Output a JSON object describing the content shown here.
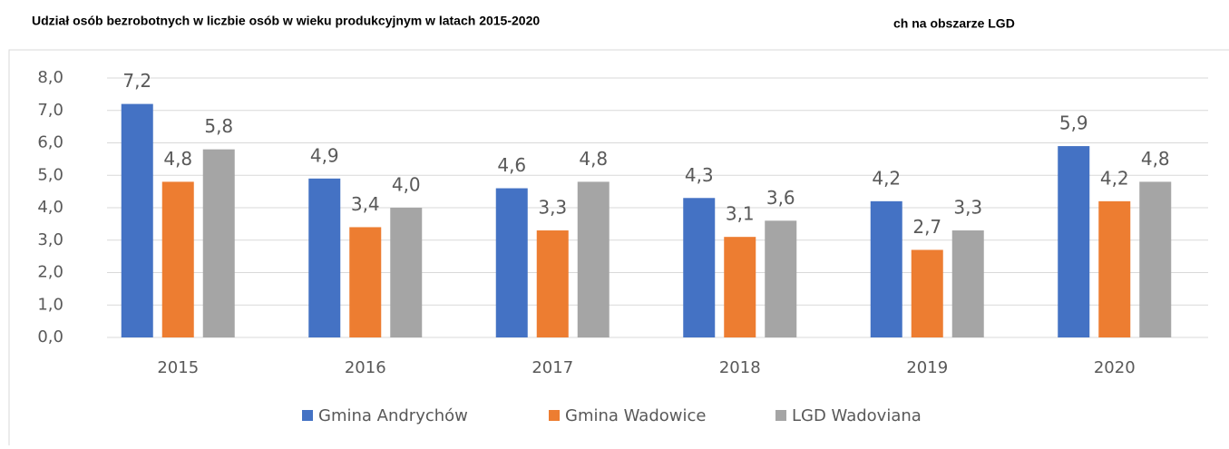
{
  "chart_data": {
    "type": "bar",
    "title": "Udział osób bezrobotnych w liczbie osób w wieku produkcyjnym w latach 2015-2020",
    "annotation": "ch na obszarze LGD",
    "categories": [
      "2015",
      "2016",
      "2017",
      "2018",
      "2019",
      "2020"
    ],
    "series": [
      {
        "name": "Gmina Andrychów",
        "color": "#4472c4",
        "values": [
          7.2,
          4.9,
          4.6,
          4.3,
          4.2,
          5.9
        ],
        "value_labels": [
          "7,2",
          "4,9",
          "4,6",
          "4,3",
          "4,2",
          "5,9"
        ]
      },
      {
        "name": "Gmina Wadowice",
        "color": "#ed7d31",
        "values": [
          4.8,
          3.4,
          3.3,
          3.1,
          2.7,
          4.2
        ],
        "value_labels": [
          "4,8",
          "3,4",
          "3,3",
          "3,1",
          "2,7",
          "4,2"
        ]
      },
      {
        "name": "LGD Wadoviana",
        "color": "#a5a5a5",
        "values": [
          5.8,
          4.0,
          4.8,
          3.6,
          3.3,
          4.8
        ],
        "value_labels": [
          "5,8",
          "4,0",
          "4,8",
          "3,6",
          "3,3",
          "4,8"
        ]
      }
    ],
    "ylim": [
      0,
      8
    ],
    "yticks": [
      {
        "value": 0,
        "label": "0,0"
      },
      {
        "value": 1,
        "label": "1,0"
      },
      {
        "value": 2,
        "label": "2,0"
      },
      {
        "value": 3,
        "label": "3,0"
      },
      {
        "value": 4,
        "label": "4,0"
      },
      {
        "value": 5,
        "label": "5,0"
      },
      {
        "value": 6,
        "label": "6,0"
      },
      {
        "value": 7,
        "label": "7,0"
      },
      {
        "value": 8,
        "label": "8,0"
      }
    ],
    "grid": true
  }
}
